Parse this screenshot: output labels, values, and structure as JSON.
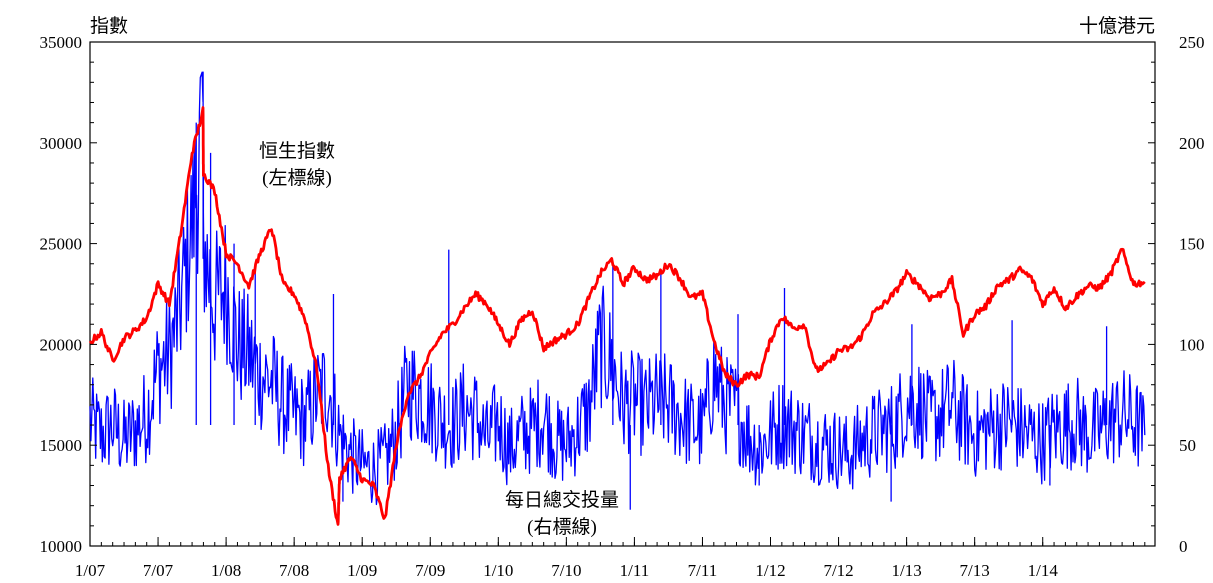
{
  "chart_data": {
    "type": "line",
    "left_axis_title": "指數",
    "right_axis_title": "十億港元",
    "left_ylim": [
      10000,
      35000
    ],
    "right_ylim": [
      0,
      250
    ],
    "left_yticks": [
      10000,
      15000,
      20000,
      25000,
      30000,
      35000
    ],
    "right_yticks": [
      0,
      50,
      100,
      150,
      200,
      250
    ],
    "xlim": [
      "2007-01",
      "2014-10"
    ],
    "xticks": [
      {
        "label": "1/07",
        "month": 0
      },
      {
        "label": "7/07",
        "month": 6
      },
      {
        "label": "1/08",
        "month": 12
      },
      {
        "label": "7/08",
        "month": 18
      },
      {
        "label": "1/09",
        "month": 24
      },
      {
        "label": "7/09",
        "month": 30
      },
      {
        "label": "1/10",
        "month": 36
      },
      {
        "label": "7/10",
        "month": 42
      },
      {
        "label": "1/11",
        "month": 48
      },
      {
        "label": "7/11",
        "month": 54
      },
      {
        "label": "1/12",
        "month": 60
      },
      {
        "label": "7/12",
        "month": 66
      },
      {
        "label": "1/13",
        "month": 72
      },
      {
        "label": "7/13",
        "month": 78
      },
      {
        "label": "1/14",
        "month": 84
      }
    ],
    "grid": false,
    "series": [
      {
        "name": "恒生指數",
        "axis": "left",
        "color": "#ff0000",
        "annotation": [
          "恒生指數",
          "(左標線)"
        ],
        "points": [
          [
            "2007-01",
            20100
          ],
          [
            "2007-02",
            20600
          ],
          [
            "2007-03",
            19200
          ],
          [
            "2007-04",
            20300
          ],
          [
            "2007-05",
            20700
          ],
          [
            "2007-06",
            21300
          ],
          [
            "2007-07",
            23000
          ],
          [
            "2007-08",
            22000
          ],
          [
            "2007-09",
            25500
          ],
          [
            "2007-10",
            29500
          ],
          [
            "2007-10-30",
            31600
          ],
          [
            "2007-11",
            28500
          ],
          [
            "2007-12",
            27600
          ],
          [
            "2008-01",
            24500
          ],
          [
            "2008-02",
            24000
          ],
          [
            "2008-03",
            22900
          ],
          [
            "2008-04",
            24500
          ],
          [
            "2008-05",
            25800
          ],
          [
            "2008-06",
            23000
          ],
          [
            "2008-07",
            22500
          ],
          [
            "2008-08",
            21200
          ],
          [
            "2008-09",
            18800
          ],
          [
            "2008-10",
            13900
          ],
          [
            "2008-10-27",
            11000
          ],
          [
            "2008-11",
            13400
          ],
          [
            "2008-12",
            14400
          ],
          [
            "2009-01",
            13300
          ],
          [
            "2009-02",
            13000
          ],
          [
            "2009-03",
            11300
          ],
          [
            "2009-04",
            15000
          ],
          [
            "2009-05",
            17500
          ],
          [
            "2009-06",
            18300
          ],
          [
            "2009-07",
            19500
          ],
          [
            "2009-08",
            20500
          ],
          [
            "2009-09",
            21000
          ],
          [
            "2009-10",
            21800
          ],
          [
            "2009-11",
            22500
          ],
          [
            "2009-12",
            22000
          ],
          [
            "2010-01",
            21000
          ],
          [
            "2010-02",
            20000
          ],
          [
            "2010-03",
            21200
          ],
          [
            "2010-04",
            21700
          ],
          [
            "2010-05",
            19800
          ],
          [
            "2010-06",
            20200
          ],
          [
            "2010-07",
            20500
          ],
          [
            "2010-08",
            21000
          ],
          [
            "2010-09",
            22300
          ],
          [
            "2010-10",
            23500
          ],
          [
            "2010-11",
            24200
          ],
          [
            "2010-12",
            23000
          ],
          [
            "2011-01",
            23800
          ],
          [
            "2011-02",
            23200
          ],
          [
            "2011-03",
            23400
          ],
          [
            "2011-04",
            24000
          ],
          [
            "2011-05",
            23300
          ],
          [
            "2011-06",
            22300
          ],
          [
            "2011-07",
            22500
          ],
          [
            "2011-08",
            20200
          ],
          [
            "2011-09",
            18500
          ],
          [
            "2011-10",
            18000
          ],
          [
            "2011-11",
            18500
          ],
          [
            "2011-12",
            18400
          ],
          [
            "2012-01",
            20200
          ],
          [
            "2012-02",
            21400
          ],
          [
            "2012-03",
            20800
          ],
          [
            "2012-04",
            21000
          ],
          [
            "2012-05",
            18700
          ],
          [
            "2012-06",
            19000
          ],
          [
            "2012-07",
            19700
          ],
          [
            "2012-08",
            19800
          ],
          [
            "2012-09",
            20400
          ],
          [
            "2012-10",
            21500
          ],
          [
            "2012-11",
            22000
          ],
          [
            "2012-12",
            22600
          ],
          [
            "2013-01",
            23500
          ],
          [
            "2013-02",
            23000
          ],
          [
            "2013-03",
            22300
          ],
          [
            "2013-04",
            22500
          ],
          [
            "2013-05",
            23200
          ],
          [
            "2013-06",
            20500
          ],
          [
            "2013-07",
            21500
          ],
          [
            "2013-08",
            21900
          ],
          [
            "2013-09",
            22900
          ],
          [
            "2013-10",
            23200
          ],
          [
            "2013-11",
            23700
          ],
          [
            "2013-12",
            23300
          ],
          [
            "2014-01",
            22000
          ],
          [
            "2014-02",
            22800
          ],
          [
            "2014-03",
            21800
          ],
          [
            "2014-04",
            22400
          ],
          [
            "2014-05",
            22900
          ],
          [
            "2014-06",
            22800
          ],
          [
            "2014-07",
            23500
          ],
          [
            "2014-08",
            24700
          ],
          [
            "2014-09",
            23000
          ],
          [
            "2014-10",
            23100
          ]
        ]
      },
      {
        "name": "每日總交投量",
        "axis": "right",
        "color": "#0000ff",
        "annotation": [
          "每日總交投量",
          "(右標線)"
        ],
        "points": [
          [
            "2007-01",
            62
          ],
          [
            "2007-02",
            55
          ],
          [
            "2007-03",
            60
          ],
          [
            "2007-04",
            52
          ],
          [
            "2007-05",
            58
          ],
          [
            "2007-06",
            65
          ],
          [
            "2007-07",
            88
          ],
          [
            "2007-08",
            95
          ],
          [
            "2007-09",
            120
          ],
          [
            "2007-10",
            160
          ],
          [
            "2007-10-30",
            210
          ],
          [
            "2007-11",
            150
          ],
          [
            "2007-12",
            120
          ],
          [
            "2008-01",
            130
          ],
          [
            "2008-02",
            100
          ],
          [
            "2008-03",
            95
          ],
          [
            "2008-04",
            85
          ],
          [
            "2008-05",
            82
          ],
          [
            "2008-06",
            70
          ],
          [
            "2008-07",
            65
          ],
          [
            "2008-08",
            62
          ],
          [
            "2008-09",
            75
          ],
          [
            "2008-10",
            80
          ],
          [
            "2008-11",
            55
          ],
          [
            "2008-12",
            45
          ],
          [
            "2009-01",
            40
          ],
          [
            "2009-02",
            38
          ],
          [
            "2009-03",
            42
          ],
          [
            "2009-04",
            55
          ],
          [
            "2009-05",
            80
          ],
          [
            "2009-06",
            75
          ],
          [
            "2009-07",
            70
          ],
          [
            "2009-08",
            62
          ],
          [
            "2009-09",
            60
          ],
          [
            "2009-10",
            68
          ],
          [
            "2009-11",
            65
          ],
          [
            "2009-12",
            52
          ],
          [
            "2010-01",
            62
          ],
          [
            "2010-02",
            48
          ],
          [
            "2010-03",
            55
          ],
          [
            "2010-04",
            58
          ],
          [
            "2010-05",
            65
          ],
          [
            "2010-06",
            52
          ],
          [
            "2010-07",
            50
          ],
          [
            "2010-08",
            58
          ],
          [
            "2010-09",
            68
          ],
          [
            "2010-10",
            100
          ],
          [
            "2010-11",
            90
          ],
          [
            "2010-12",
            70
          ],
          [
            "2011-01",
            72
          ],
          [
            "2011-02",
            68
          ],
          [
            "2011-03",
            72
          ],
          [
            "2011-04",
            70
          ],
          [
            "2011-05",
            65
          ],
          [
            "2011-06",
            60
          ],
          [
            "2011-07",
            58
          ],
          [
            "2011-08",
            85
          ],
          [
            "2011-09",
            70
          ],
          [
            "2011-10",
            68
          ],
          [
            "2011-11",
            55
          ],
          [
            "2011-12",
            48
          ],
          [
            "2012-01",
            55
          ],
          [
            "2012-02",
            62
          ],
          [
            "2012-03",
            58
          ],
          [
            "2012-04",
            55
          ],
          [
            "2012-05",
            52
          ],
          [
            "2012-06",
            50
          ],
          [
            "2012-07",
            48
          ],
          [
            "2012-08",
            45
          ],
          [
            "2012-09",
            52
          ],
          [
            "2012-10",
            55
          ],
          [
            "2012-11",
            58
          ],
          [
            "2012-12",
            60
          ],
          [
            "2013-01",
            72
          ],
          [
            "2013-02",
            70
          ],
          [
            "2013-03",
            62
          ],
          [
            "2013-04",
            65
          ],
          [
            "2013-05",
            70
          ],
          [
            "2013-06",
            62
          ],
          [
            "2013-07",
            55
          ],
          [
            "2013-08",
            58
          ],
          [
            "2013-09",
            60
          ],
          [
            "2013-10",
            62
          ],
          [
            "2013-11",
            58
          ],
          [
            "2013-12",
            55
          ],
          [
            "2014-01",
            52
          ],
          [
            "2014-02",
            58
          ],
          [
            "2014-03",
            60
          ],
          [
            "2014-04",
            62
          ],
          [
            "2014-05",
            55
          ],
          [
            "2014-06",
            58
          ],
          [
            "2014-07",
            62
          ],
          [
            "2014-08",
            65
          ],
          [
            "2014-09",
            62
          ],
          [
            "2014-10",
            55
          ]
        ],
        "spikes": [
          [
            "2007-10-12",
            210
          ],
          [
            "2007-11-20",
            195
          ],
          [
            "2008-01-22",
            150
          ],
          [
            "2008-03-18",
            140
          ],
          [
            "2008-10-15",
            125
          ],
          [
            "2009-08-20",
            147
          ],
          [
            "2010-11-04",
            140
          ],
          [
            "2011-03-11",
            137
          ],
          [
            "2011-10-05",
            115
          ],
          [
            "2012-02-08",
            128
          ],
          [
            "2013-01-15",
            110
          ],
          [
            "2013-10-10",
            112
          ],
          [
            "2014-06-20",
            109
          ],
          [
            "2008-11-10",
            22
          ],
          [
            "2010-12-20",
            18
          ],
          [
            "2011-12-01",
            30
          ],
          [
            "2012-11-20",
            22
          ],
          [
            "2014-01-20",
            30
          ]
        ]
      }
    ]
  }
}
